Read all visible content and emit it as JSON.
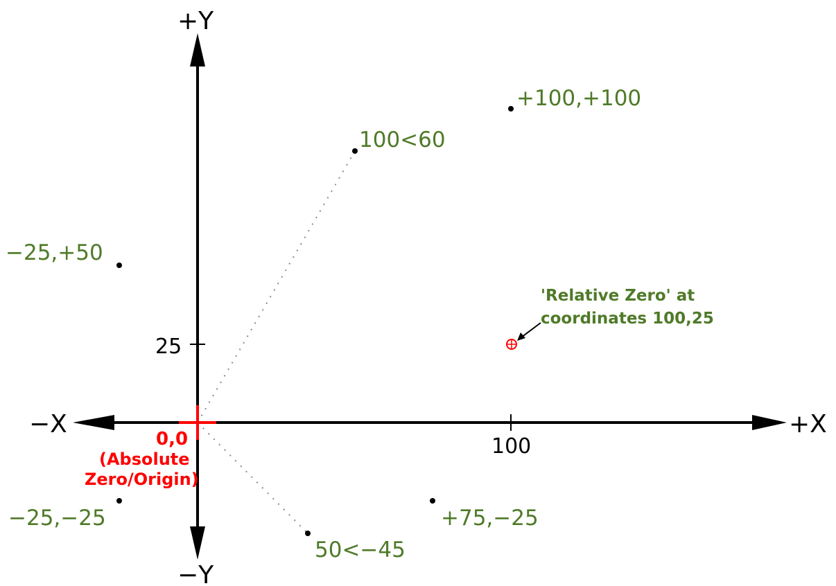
{
  "axes": {
    "pos_y": "+Y",
    "neg_y": "−Y",
    "pos_x": "+X",
    "neg_x": "−X"
  },
  "ticks": {
    "y_25": "25",
    "x_100": "100"
  },
  "origin": {
    "coords": "0,0",
    "note_line1": "(Absolute",
    "note_line2": "Zero/Origin)"
  },
  "points": {
    "p_100_100": "+100,+100",
    "p_polar_100_60": "100<60",
    "p_m25_p50": "−25,+50",
    "p_m25_m25": "−25,−25",
    "p_75_m25": "+75,−25",
    "p_polar_50_m45": "50<−45"
  },
  "relative_zero": {
    "line1": "'Relative Zero' at",
    "line2": "coordinates 100,25"
  },
  "colors": {
    "label": "#4f7a28",
    "origin": "#ff0000",
    "axis": "#000000",
    "dotted": "#888888"
  }
}
